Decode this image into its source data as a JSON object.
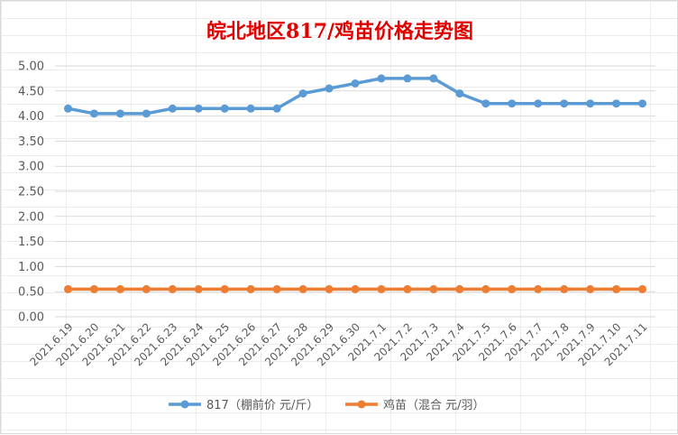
{
  "chart_data": {
    "type": "line",
    "title": "皖北地区817/鸡苗价格走势图",
    "xlabel": "",
    "ylabel": "",
    "ylim": [
      0,
      5
    ],
    "yticks": [
      "0.00",
      "0.50",
      "1.00",
      "1.50",
      "2.00",
      "2.50",
      "3.00",
      "3.50",
      "4.00",
      "4.50",
      "5.00"
    ],
    "grid": true,
    "legend_position": "bottom",
    "categories": [
      "2021.6.19",
      "2021.6.20",
      "2021.6.21",
      "2021.6.22",
      "2021.6.23",
      "2021.6.24",
      "2021.6.25",
      "2021.6.26",
      "2021.6.27",
      "2021.6.28",
      "2021.6.29",
      "2021.6.30",
      "2021.7.1",
      "2021.7.2",
      "2021.7.3",
      "2021.7.4",
      "2021.7.5",
      "2021.7.6",
      "2021.7.7",
      "2021.7.8",
      "2021.7.9",
      "2021.7.10",
      "2021.7.11"
    ],
    "series": [
      {
        "name": "817（棚前价 元/斤）",
        "color": "#5b9bd5",
        "values": [
          4.15,
          4.05,
          4.05,
          4.05,
          4.15,
          4.15,
          4.15,
          4.15,
          4.15,
          4.45,
          4.55,
          4.65,
          4.75,
          4.75,
          4.75,
          4.45,
          4.25,
          4.25,
          4.25,
          4.25,
          4.25,
          4.25,
          4.25
        ]
      },
      {
        "name": "鸡苗（混合 元/羽）",
        "color": "#ed7d31",
        "values": [
          0.55,
          0.55,
          0.55,
          0.55,
          0.55,
          0.55,
          0.55,
          0.55,
          0.55,
          0.55,
          0.55,
          0.55,
          0.55,
          0.55,
          0.55,
          0.55,
          0.55,
          0.55,
          0.55,
          0.55,
          0.55,
          0.55,
          0.55
        ]
      }
    ]
  }
}
